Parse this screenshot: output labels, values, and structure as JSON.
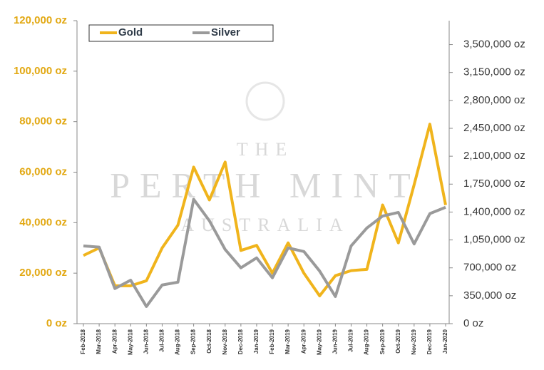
{
  "chart_data": {
    "type": "line",
    "watermark": [
      "THE",
      "PERTH MINT",
      "AUSTRALIA"
    ],
    "categories": [
      "Feb-2018",
      "Mar-2018",
      "Apr-2018",
      "May-2018",
      "Jun-2018",
      "Jul-2018",
      "Aug-2018",
      "Sep-2018",
      "Oct-2018",
      "Nov-2018",
      "Dec-2018",
      "Jan-2019",
      "Feb-2019",
      "Mar-2019",
      "Apr-2019",
      "May-2019",
      "Jun-2019",
      "Jul-2019",
      "Aug-2019",
      "Sep-2019",
      "Oct-2019",
      "Nov-2019",
      "Dec-2019",
      "Jan-2020"
    ],
    "series": [
      {
        "name": "Gold",
        "color": "#f0b41c",
        "values": [
          27000,
          30000,
          15000,
          15000,
          17000,
          30000,
          39000,
          62000,
          49000,
          64000,
          29000,
          31000,
          20000,
          32000,
          20000,
          11000,
          19000,
          21000,
          21500,
          47000,
          32000,
          55000,
          79000,
          47000
        ]
      },
      {
        "name": "Silver",
        "color": "#9a9a9a",
        "axis": "y2",
        "values": [
          975000,
          960000,
          440000,
          545000,
          215000,
          485000,
          520000,
          1560000,
          1290000,
          930000,
          700000,
          825000,
          575000,
          950000,
          905000,
          660000,
          340000,
          975000,
          1200000,
          1350000,
          1395000,
          1000000,
          1380000,
          1460000
        ]
      }
    ],
    "ylim": [
      0,
      120000
    ],
    "yticks": [
      {
        "value": 0,
        "label": "0 oz"
      },
      {
        "value": 20000,
        "label": "20,000 oz"
      },
      {
        "value": 40000,
        "label": "40,000 oz"
      },
      {
        "value": 60000,
        "label": "60,000 oz"
      },
      {
        "value": 80000,
        "label": "80,000 oz"
      },
      {
        "value": 100000,
        "label": "100,000 oz"
      },
      {
        "value": 120000,
        "label": "120,000 oz"
      }
    ],
    "y2lim": [
      0,
      3800000
    ],
    "y2ticks": [
      {
        "value": 0,
        "label": "0 oz"
      },
      {
        "value": 350000,
        "label": "350,000 oz"
      },
      {
        "value": 700000,
        "label": "700,000 oz"
      },
      {
        "value": 1050000,
        "label": "1,050,000 oz"
      },
      {
        "value": 1400000,
        "label": "1,400,000 oz"
      },
      {
        "value": 1750000,
        "label": "1,750,000 oz"
      },
      {
        "value": 2100000,
        "label": "2,100,000 oz"
      },
      {
        "value": 2450000,
        "label": "2,450,000 oz"
      },
      {
        "value": 2800000,
        "label": "2,800,000 oz"
      },
      {
        "value": 3150000,
        "label": "3,150,000 oz"
      },
      {
        "value": 3500000,
        "label": "3,500,000 oz"
      }
    ],
    "legend": "top-left"
  }
}
